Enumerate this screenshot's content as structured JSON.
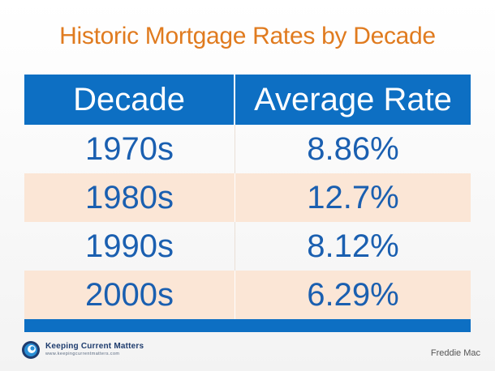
{
  "chart_data": {
    "type": "table",
    "title": "Historic Mortgage Rates by Decade",
    "columns": [
      "Decade",
      "Average Rate"
    ],
    "rows": [
      {
        "decade": "1970s",
        "rate": "8.86%"
      },
      {
        "decade": "1980s",
        "rate": "12.7%"
      },
      {
        "decade": "1990s",
        "rate": "8.12%"
      },
      {
        "decade": "2000s",
        "rate": "6.29%"
      }
    ],
    "values": [
      8.86,
      12.7,
      8.12,
      6.29
    ]
  },
  "footer": {
    "logo_name": "Keeping Current Matters",
    "logo_url": "www.keepingcurrentmatters.com",
    "source": "Freddie Mac"
  },
  "colors": {
    "title": "#e07b1f",
    "header": "#0d6fc3",
    "body_text": "#1a5fb0",
    "alt_row": "#fbe6d6"
  }
}
